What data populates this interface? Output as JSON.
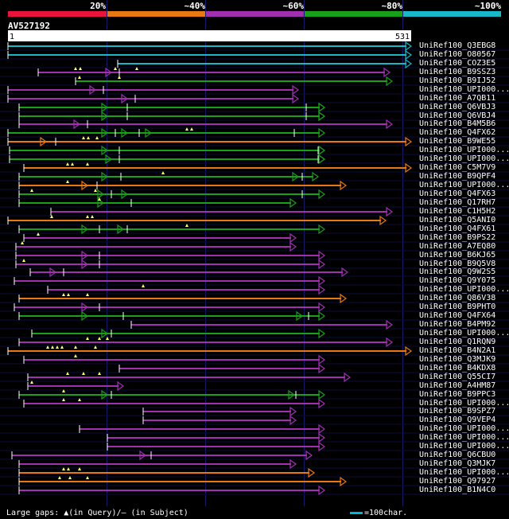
{
  "legend": {
    "labels": [
      "20%",
      "~40%",
      "~60%",
      "~80%",
      "~100%"
    ],
    "colors": [
      "#e8143c",
      "#e87814",
      "#a030b0",
      "#18a018",
      "#18b8c8"
    ]
  },
  "query": {
    "name": "AV527192",
    "start": "1",
    "end": "531"
  },
  "hits": [
    {
      "name": "UniRef100_Q3EBG8",
      "color": "cyan"
    },
    {
      "name": "UniRef100_O80567",
      "color": "cyan"
    },
    {
      "name": "UniRef100_COZ3E5",
      "color": "cyan"
    },
    {
      "name": "UniRef100_B9SSZ3",
      "color": "purple"
    },
    {
      "name": "UniRef100_B9IJ52",
      "color": "green"
    },
    {
      "name": "UniRef100_UPI000...",
      "color": "purple"
    },
    {
      "name": "UniRef100_A7QB11",
      "color": "purple"
    },
    {
      "name": "UniRef100_Q6VBJ3",
      "color": "green"
    },
    {
      "name": "UniRef100_Q6VBJ4",
      "color": "green"
    },
    {
      "name": "UniRef100_B4M5B6",
      "color": "purple"
    },
    {
      "name": "UniRef100_Q4FX62",
      "color": "green"
    },
    {
      "name": "UniRef100_B9WE55",
      "color": "orange"
    },
    {
      "name": "UniRef100_UPI000...",
      "color": "green"
    },
    {
      "name": "UniRef100_UPI000...",
      "color": "green"
    },
    {
      "name": "UniRef100_C5M7V9",
      "color": "orange"
    },
    {
      "name": "UniRef100_B9QPF4",
      "color": "green"
    },
    {
      "name": "UniRef100_UPI000...",
      "color": "orange"
    },
    {
      "name": "UniRef100_Q4FX63",
      "color": "green"
    },
    {
      "name": "UniRef100_Q17RH7",
      "color": "green"
    },
    {
      "name": "UniRef100_C1H5H2",
      "color": "purple"
    },
    {
      "name": "UniRef100_Q5ANI0",
      "color": "orange"
    },
    {
      "name": "UniRef100_Q4FX61",
      "color": "green"
    },
    {
      "name": "UniRef100_B9PS22",
      "color": "purple"
    },
    {
      "name": "UniRef100_A7EQ80",
      "color": "purple"
    },
    {
      "name": "UniRef100_B6KJ65",
      "color": "purple"
    },
    {
      "name": "UniRef100_B9Q5V8",
      "color": "purple"
    },
    {
      "name": "UniRef100_Q9W2S5",
      "color": "purple"
    },
    {
      "name": "UniRef100_Q9Y075",
      "color": "purple"
    },
    {
      "name": "UniRef100_UPI000...",
      "color": "purple"
    },
    {
      "name": "UniRef100_Q86V38",
      "color": "orange"
    },
    {
      "name": "UniRef100_B9PHT0",
      "color": "purple"
    },
    {
      "name": "UniRef100_Q4FX64",
      "color": "green"
    },
    {
      "name": "UniRef100_B4PM92",
      "color": "purple"
    },
    {
      "name": "UniRef100_UPI000...",
      "color": "green"
    },
    {
      "name": "UniRef100_Q1RQN9",
      "color": "purple"
    },
    {
      "name": "UniRef100_B4N2A1",
      "color": "orange"
    },
    {
      "name": "UniRef100_Q3MJK9",
      "color": "purple"
    },
    {
      "name": "UniRef100_B4KDX8",
      "color": "purple"
    },
    {
      "name": "UniRef100_Q55CI7",
      "color": "purple"
    },
    {
      "name": "UniRef100_A4HM87",
      "color": "purple"
    },
    {
      "name": "UniRef100_B9PPC3",
      "color": "green"
    },
    {
      "name": "UniRef100_UPI000...",
      "color": "purple"
    },
    {
      "name": "UniRef100_B9SPZ7",
      "color": "purple"
    },
    {
      "name": "UniRef100_Q9VEP4",
      "color": "purple"
    },
    {
      "name": "UniRef100_UPI000...",
      "color": "purple"
    },
    {
      "name": "UniRef100_UPI000...",
      "color": "purple"
    },
    {
      "name": "UniRef100_UPI000...",
      "color": "purple"
    },
    {
      "name": "UniRef100_Q6CBU0",
      "color": "purple"
    },
    {
      "name": "UniRef100_Q3MJK7",
      "color": "purple"
    },
    {
      "name": "UniRef100_UPI000...",
      "color": "orange"
    },
    {
      "name": "UniRef100_Q97927",
      "color": "orange"
    },
    {
      "name": "UniRef100_B1N4C0",
      "color": "purple"
    }
  ],
  "footer": {
    "gaps": "Large gaps: ▲(in Query)/— (in Subject)",
    "scale": "=100char."
  },
  "palette": {
    "cyan": "#18b8c8",
    "purple": "#a030b0",
    "green": "#18a018",
    "orange": "#e87814",
    "red": "#e8143c"
  }
}
